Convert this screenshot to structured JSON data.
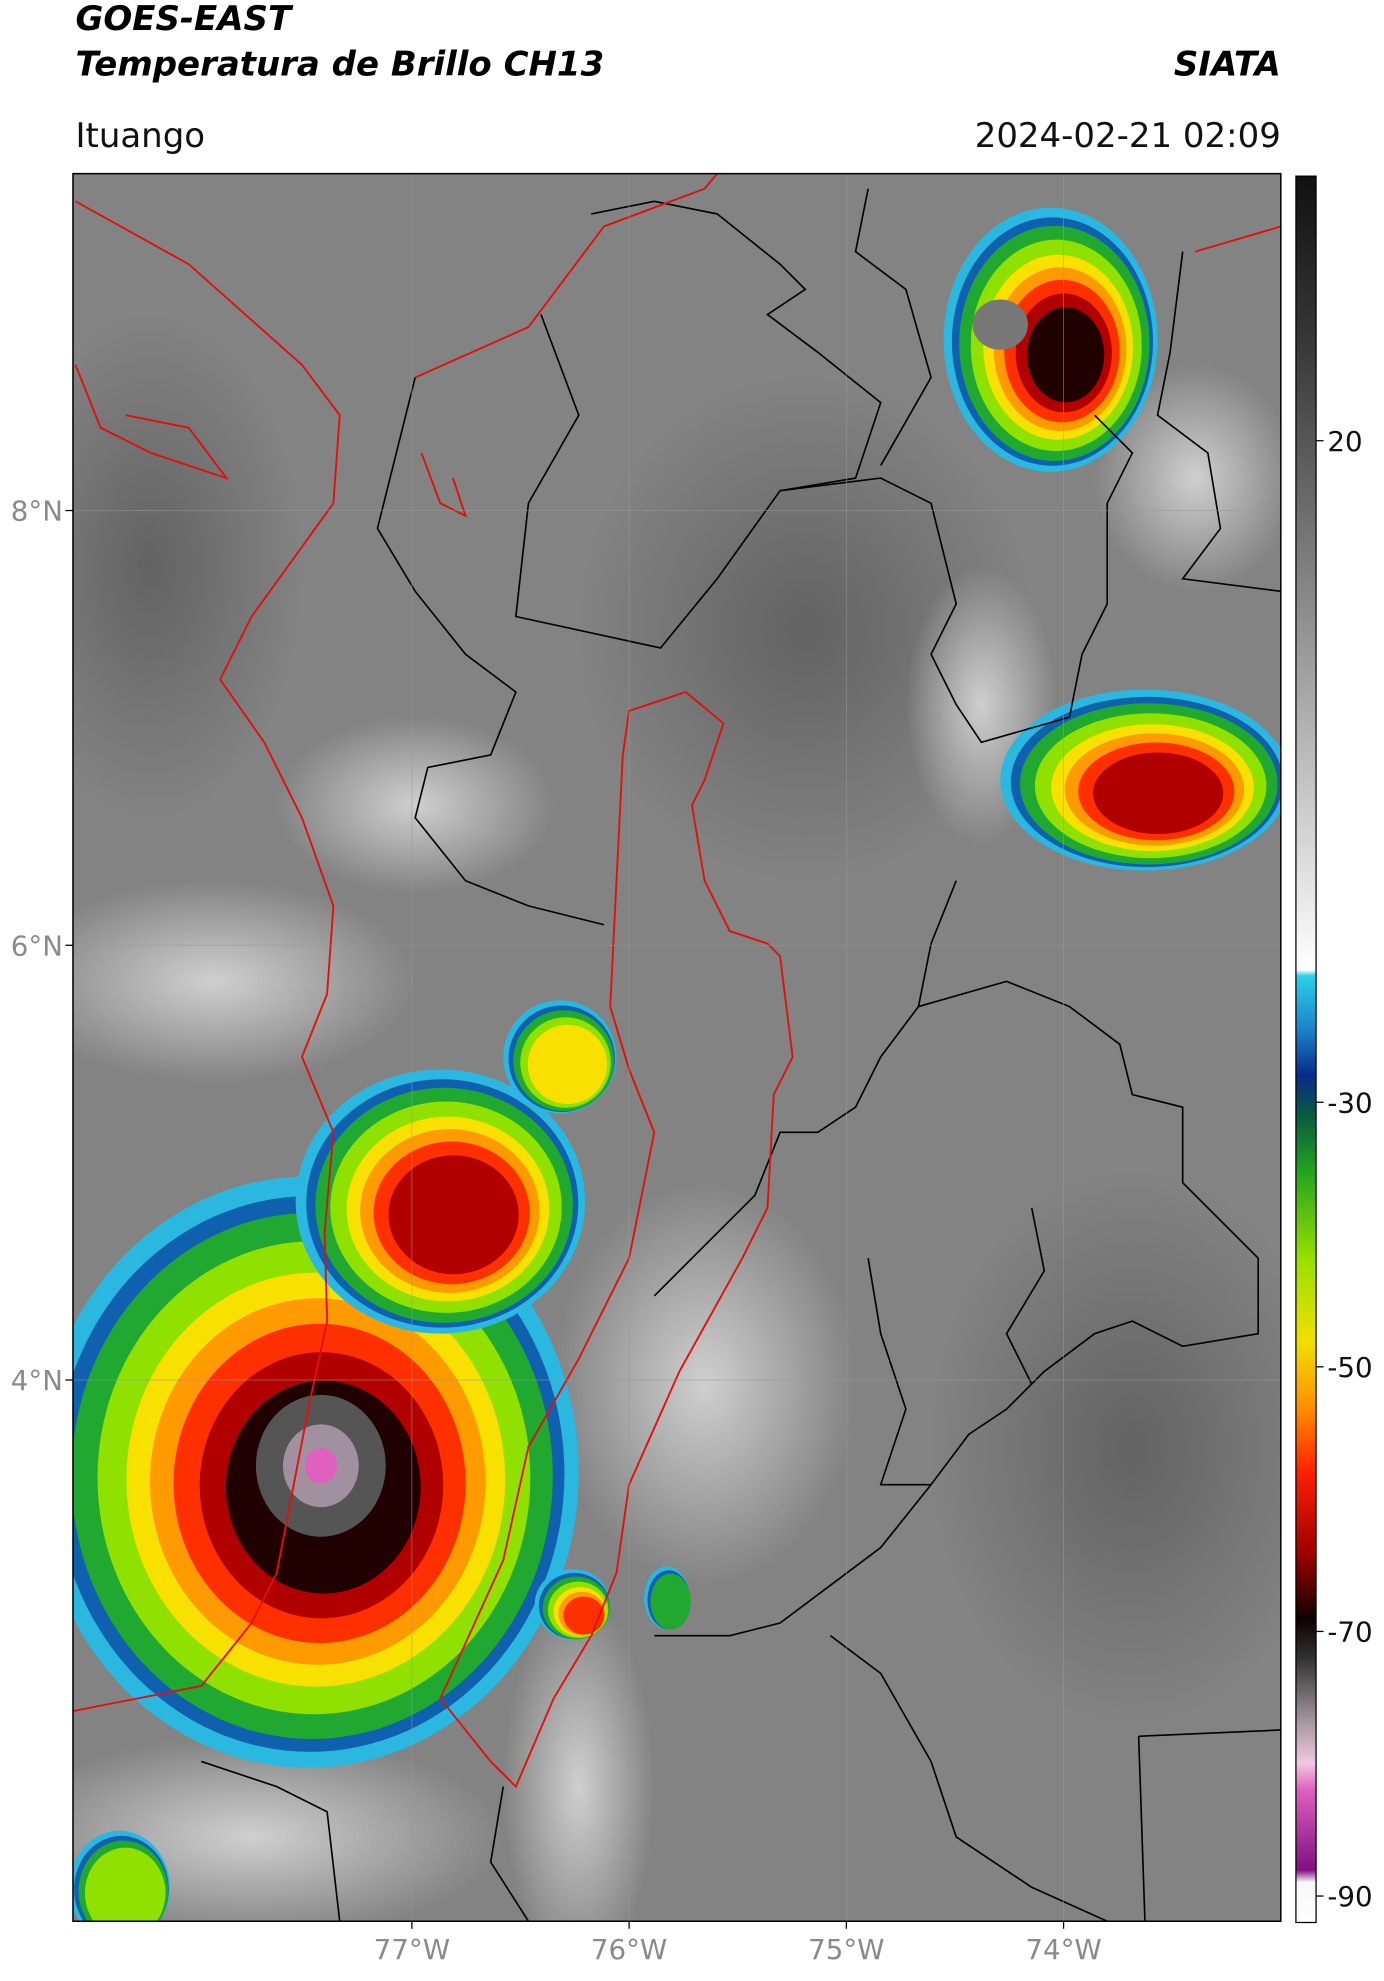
{
  "chart_data": {
    "type": "map",
    "title": "GOES-EAST",
    "subtitle": "Temperatura de Brillo CH13",
    "source": "SIATA",
    "location": "Ituango",
    "timestamp": "2024-02-21 02:09",
    "xlim": [
      -78.56,
      -73.0
    ],
    "ylim": [
      1.51,
      9.55
    ],
    "xticks": [
      {
        "value": -77,
        "label": "77°W"
      },
      {
        "value": -76,
        "label": "76°W"
      },
      {
        "value": -75,
        "label": "75°W"
      },
      {
        "value": -74,
        "label": "74°W"
      }
    ],
    "yticks": [
      {
        "value": 4,
        "label": "4°N"
      },
      {
        "value": 6,
        "label": "6°N"
      },
      {
        "value": 8,
        "label": "8°N"
      }
    ],
    "grid": true,
    "colorbar": {
      "lim": [
        -92,
        40
      ],
      "ticks": [
        -90,
        -70,
        -50,
        -30,
        20
      ]
    }
  }
}
